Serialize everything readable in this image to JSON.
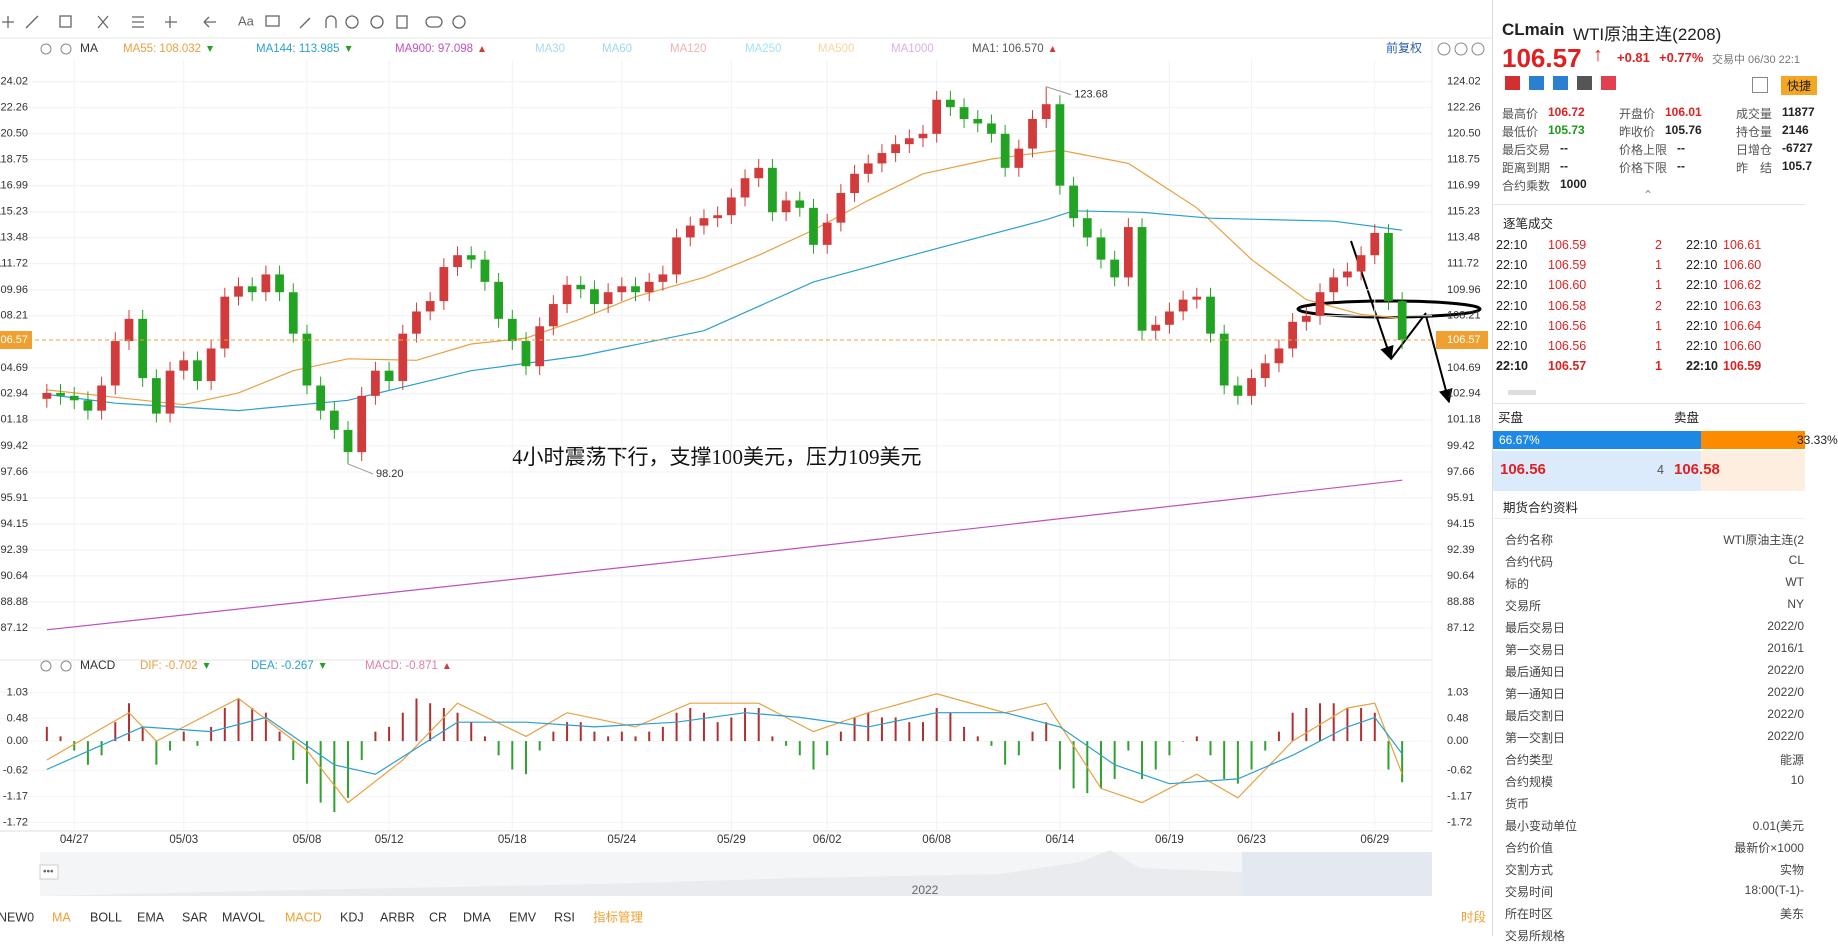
{
  "toolbar": {
    "text_tool": "Aa"
  },
  "chart_data": [
    {
      "type": "candlestick",
      "indicator": "MA",
      "adjust": "前复权",
      "legend": [
        {
          "label": "MA55: 108.032",
          "color": "#e8a040",
          "trend": "down"
        },
        {
          "label": "MA144: 113.985",
          "color": "#2aa0d0",
          "trend": "down"
        },
        {
          "label": "MA900: 97.098",
          "color": "#c050c0",
          "trend": "up"
        },
        {
          "label": "MA30",
          "color": "#a8d8ee"
        },
        {
          "label": "MA60",
          "color": "#9fd8e8"
        },
        {
          "label": "MA120",
          "color": "#f4b0b0"
        },
        {
          "label": "MA250",
          "color": "#9fe4ee"
        },
        {
          "label": "MA500",
          "color": "#f5d7a0"
        },
        {
          "label": "MA1000",
          "color": "#d9b0e6"
        },
        {
          "label": "MA1: 106.570",
          "color": "#555555",
          "trend": "up"
        }
      ],
      "open": [
        102.6,
        103.0,
        102.8,
        102.5,
        101.8,
        103.5,
        106.5,
        108.0,
        104.0,
        101.6,
        104.5,
        105.2,
        103.8,
        106.0,
        109.5,
        110.2,
        109.8,
        111.0,
        109.8,
        107.0,
        103.5,
        101.8,
        100.5,
        99.0,
        102.8,
        104.5,
        103.8,
        107.0,
        108.5,
        109.2,
        111.5,
        112.3,
        112.0,
        110.5,
        108.0,
        106.5,
        104.8,
        107.5,
        109.0,
        110.3,
        110.0,
        109.0,
        109.8,
        110.2,
        109.8,
        110.5,
        111.0,
        113.5,
        114.3,
        114.8,
        115.0,
        116.2,
        117.5,
        118.2,
        115.2,
        116.0,
        115.5,
        113.0,
        114.5,
        116.5,
        117.8,
        118.5,
        119.2,
        119.8,
        120.2,
        120.5,
        122.8,
        122.3,
        121.5,
        121.2,
        120.5,
        118.2,
        119.5,
        121.5,
        122.5,
        117.0,
        114.8,
        113.5,
        112.0,
        110.8,
        114.2,
        107.2,
        107.6,
        108.5,
        109.3,
        109.5,
        107.0,
        103.5,
        102.8,
        104.0,
        105.0,
        106.0,
        107.8,
        108.2,
        109.8,
        110.8,
        111.2,
        112.3,
        113.8,
        109.2
      ],
      "high": [
        103.6,
        103.6,
        103.4,
        103.1,
        104.1,
        107.1,
        108.6,
        108.6,
        104.6,
        105.1,
        105.8,
        105.8,
        106.6,
        110.1,
        110.8,
        110.8,
        111.6,
        111.6,
        110.4,
        107.6,
        104.1,
        102.4,
        101.1,
        103.4,
        105.1,
        105.1,
        107.6,
        109.1,
        109.8,
        112.1,
        112.9,
        112.9,
        112.6,
        111.1,
        108.6,
        107.1,
        108.1,
        109.6,
        110.9,
        110.9,
        110.6,
        110.4,
        110.8,
        110.8,
        111.1,
        111.6,
        114.1,
        114.9,
        115.4,
        115.6,
        116.8,
        118.1,
        118.8,
        118.8,
        116.6,
        116.6,
        116.1,
        115.1,
        117.1,
        118.4,
        119.1,
        119.8,
        120.4,
        120.8,
        121.1,
        123.4,
        123.4,
        122.9,
        122.1,
        121.8,
        121.1,
        120.1,
        122.1,
        123.68,
        123.1,
        117.6,
        115.4,
        114.1,
        112.6,
        114.8,
        114.8,
        108.2,
        109.1,
        109.9,
        110.1,
        110.1,
        107.6,
        104.1,
        104.6,
        105.6,
        106.6,
        108.4,
        108.8,
        110.4,
        111.4,
        111.8,
        112.9,
        114.4,
        114.4,
        109.8
      ],
      "low": [
        102.0,
        102.2,
        101.9,
        101.2,
        101.2,
        102.9,
        105.9,
        103.4,
        101.0,
        101.0,
        103.9,
        103.2,
        103.2,
        105.4,
        108.9,
        109.2,
        109.2,
        109.2,
        106.4,
        102.9,
        101.2,
        99.9,
        98.2,
        98.4,
        102.2,
        103.2,
        103.2,
        106.4,
        107.9,
        108.6,
        110.9,
        111.4,
        109.9,
        107.4,
        105.9,
        104.2,
        104.2,
        106.9,
        108.4,
        109.4,
        108.4,
        108.4,
        109.2,
        109.2,
        109.2,
        109.9,
        110.4,
        112.9,
        113.7,
        114.2,
        114.4,
        115.6,
        116.9,
        114.6,
        114.6,
        114.9,
        112.4,
        112.4,
        113.9,
        115.9,
        117.2,
        117.9,
        118.6,
        119.2,
        119.6,
        119.9,
        121.7,
        120.9,
        120.6,
        119.9,
        117.6,
        117.6,
        118.9,
        120.9,
        116.4,
        114.2,
        112.9,
        111.4,
        110.2,
        110.2,
        106.6,
        106.6,
        107.0,
        107.9,
        108.7,
        106.4,
        102.9,
        102.2,
        102.2,
        103.4,
        104.4,
        105.4,
        107.2,
        107.6,
        109.2,
        110.2,
        110.6,
        111.7,
        108.6,
        105.97
      ],
      "close": [
        103.0,
        102.8,
        102.5,
        101.8,
        103.5,
        106.5,
        108.0,
        104.0,
        101.6,
        104.5,
        105.2,
        103.8,
        106.0,
        109.5,
        110.2,
        109.8,
        111.0,
        109.8,
        107.0,
        103.5,
        101.8,
        100.5,
        99.0,
        102.8,
        104.5,
        103.8,
        107.0,
        108.5,
        109.2,
        111.5,
        112.3,
        112.0,
        110.5,
        108.0,
        106.5,
        104.8,
        107.5,
        109.0,
        110.3,
        110.0,
        109.0,
        109.8,
        110.2,
        109.8,
        110.5,
        111.0,
        113.5,
        114.3,
        114.8,
        115.0,
        116.2,
        117.5,
        118.2,
        115.2,
        116.0,
        115.5,
        113.0,
        114.5,
        116.5,
        117.8,
        118.5,
        119.2,
        119.8,
        120.2,
        120.5,
        122.8,
        122.3,
        121.5,
        121.2,
        120.5,
        118.2,
        119.5,
        121.5,
        122.5,
        117.0,
        114.8,
        113.5,
        112.0,
        110.8,
        114.2,
        107.2,
        107.6,
        108.5,
        109.3,
        109.5,
        107.0,
        103.5,
        102.8,
        104.0,
        105.0,
        106.0,
        107.8,
        108.2,
        109.8,
        110.8,
        111.2,
        112.3,
        113.8,
        109.2,
        106.57
      ],
      "up_color": "#d23b3b",
      "down_color": "#23a323",
      "ylim": [
        85.43,
        125.08
      ],
      "yticks": [
        124.02,
        122.26,
        {
          "value": 120.5,
          "label": "120.50"
        },
        118.75,
        116.99,
        115.23,
        113.48,
        111.72,
        109.96,
        108.21,
        104.69,
        102.94,
        101.18,
        99.42,
        97.66,
        95.91,
        94.15,
        92.39,
        90.64,
        88.88,
        87.12
      ],
      "last_price": 106.57,
      "last_color": "#f0a030",
      "high_label": {
        "value": 123.68,
        "label": "123.68"
      },
      "low_label": {
        "value": 98.2,
        "label": "98.20"
      },
      "lines": [
        {
          "color": "#e8a040",
          "x": [
            0,
            5,
            10,
            14,
            18,
            22,
            27,
            31,
            35,
            39,
            43,
            48,
            52,
            56,
            60,
            64,
            69,
            74,
            79,
            84,
            88,
            92,
            96,
            99
          ],
          "values": [
            103.2,
            102.7,
            102.2,
            103.0,
            104.5,
            105.3,
            105.2,
            106.3,
            106.7,
            108.0,
            109.5,
            110.8,
            112.3,
            114.0,
            116.0,
            117.8,
            118.8,
            119.4,
            118.5,
            115.5,
            112.0,
            109.3,
            108.3,
            108.03
          ]
        },
        {
          "color": "#2aa0d0",
          "x": [
            0,
            5,
            14,
            22,
            31,
            39,
            48,
            56,
            64,
            73,
            75,
            80,
            85,
            94,
            99
          ],
          "values": [
            102.9,
            102.3,
            101.8,
            102.5,
            104.5,
            105.5,
            107.2,
            110.5,
            112.5,
            114.7,
            115.3,
            115.2,
            114.8,
            114.6,
            113.99
          ]
        },
        {
          "color": "#c050c0",
          "x": [
            0,
            50,
            99
          ],
          "values": [
            87.0,
            92.0,
            97.1
          ]
        }
      ]
    },
    {
      "type": "macd",
      "title": "MACD",
      "legend": [
        {
          "label": "DIF: -0.702",
          "color": "#e8a040",
          "trend": "down"
        },
        {
          "label": "DEA: -0.267",
          "color": "#2aa0d0",
          "trend": "down"
        },
        {
          "label": "MACD: -0.871",
          "color": "#e080a0",
          "trend": "up"
        }
      ],
      "categories": [
        null,
        null,
        "04/27",
        null,
        null,
        null,
        null,
        null,
        null,
        null,
        "05/03",
        null,
        null,
        null,
        null,
        null,
        null,
        null,
        null,
        "05/08",
        null,
        null,
        null,
        null,
        null,
        "05/12",
        null,
        null,
        null,
        null,
        null,
        null,
        null,
        null,
        "05/18",
        null,
        null,
        null,
        null,
        null,
        null,
        null,
        "05/24",
        null,
        null,
        null,
        null,
        null,
        null,
        null,
        "05/29",
        null,
        null,
        null,
        null,
        null,
        null,
        "06/02",
        null,
        null,
        null,
        null,
        null,
        null,
        null,
        "06/08",
        null,
        null,
        null,
        null,
        null,
        null,
        null,
        null,
        "06/14",
        null,
        null,
        null,
        null,
        null,
        null,
        null,
        "06/19",
        null,
        null,
        null,
        null,
        null,
        "06/23",
        null,
        null,
        null,
        null,
        null,
        null,
        null,
        null,
        "06/29",
        null,
        null
      ],
      "values": [
        0.3,
        0.1,
        -0.2,
        -0.5,
        -0.3,
        0.4,
        0.8,
        0.3,
        -0.5,
        -0.2,
        0.2,
        -0.1,
        0.3,
        0.7,
        0.9,
        0.7,
        0.6,
        0.2,
        -0.4,
        -0.9,
        -1.3,
        -1.5,
        -1.2,
        -0.4,
        0.2,
        0.3,
        0.6,
        0.9,
        0.8,
        0.7,
        0.6,
        0.4,
        0.1,
        -0.3,
        -0.6,
        -0.7,
        -0.2,
        0.2,
        0.4,
        0.4,
        0.2,
        0.1,
        0.2,
        0.1,
        0.2,
        0.3,
        0.6,
        0.7,
        0.6,
        0.4,
        0.5,
        0.7,
        0.7,
        0.1,
        -0.1,
        -0.3,
        -0.6,
        -0.3,
        0.2,
        0.5,
        0.6,
        0.5,
        0.5,
        0.4,
        0.4,
        0.7,
        0.6,
        0.3,
        0.1,
        -0.1,
        -0.5,
        -0.3,
        0.2,
        0.4,
        -0.6,
        -1.0,
        -1.1,
        -1.0,
        -0.8,
        -0.2,
        -0.8,
        -0.6,
        -0.3,
        0.0,
        0.1,
        -0.3,
        -0.8,
        -0.9,
        -0.6,
        -0.2,
        0.2,
        0.6,
        0.7,
        0.8,
        0.8,
        0.7,
        0.7,
        0.6,
        -0.6,
        -0.87
      ],
      "up_color": "#b03030",
      "down_color": "#30a030",
      "ylim": [
        -1.9,
        1.27
      ],
      "yticks": [
        1.03,
        0.48,
        {
          "value": 0,
          "label": "0.00"
        },
        -0.62,
        -1.17,
        -1.72
      ],
      "lines": [
        {
          "color": "#e8a040",
          "x": [
            0,
            6,
            8,
            14,
            19,
            22,
            26,
            30,
            35,
            38,
            43,
            47,
            52,
            56,
            60,
            65,
            70,
            73,
            77,
            80,
            84,
            87,
            91,
            95,
            97,
            99
          ],
          "values": [
            -0.4,
            0.6,
            0.0,
            0.9,
            -0.2,
            -1.3,
            -0.4,
            0.8,
            0.1,
            0.6,
            0.3,
            0.8,
            0.8,
            0.2,
            0.6,
            1.0,
            0.6,
            0.8,
            -1.0,
            -1.3,
            -0.7,
            -1.2,
            0.0,
            0.7,
            0.8,
            -0.7
          ]
        },
        {
          "color": "#2aa0d0",
          "x": [
            0,
            7,
            12,
            16,
            21,
            24,
            30,
            35,
            40,
            46,
            51,
            55,
            60,
            65,
            70,
            74,
            78,
            82,
            87,
            91,
            95,
            97,
            99
          ],
          "values": [
            -0.6,
            0.3,
            0.2,
            0.5,
            -0.5,
            -0.7,
            0.4,
            0.4,
            0.3,
            0.4,
            0.6,
            0.5,
            0.3,
            0.6,
            0.6,
            0.3,
            -0.5,
            -0.9,
            -0.8,
            -0.3,
            0.3,
            0.5,
            -0.27
          ]
        }
      ]
    }
  ],
  "annotation": "4小时震荡下行，支撑100美元，压力109美元",
  "navigator": {
    "year": "2022"
  },
  "indicator_tabs": [
    {
      "label": "NEW0"
    },
    {
      "label": "MA",
      "color": "#f0a030"
    },
    {
      "label": "BOLL"
    },
    {
      "label": "EMA"
    },
    {
      "label": "SAR"
    },
    {
      "label": "MAVOL"
    },
    {
      "label": "MACD",
      "color": "#f0a030"
    },
    {
      "label": "KDJ"
    },
    {
      "label": "ARBR"
    },
    {
      "label": "CR"
    },
    {
      "label": "DMA"
    },
    {
      "label": "EMV"
    },
    {
      "label": "RSI"
    },
    {
      "label": "指标管理",
      "color": "#f0a030"
    }
  ],
  "time_range": "时段",
  "quote": {
    "symbol": "CLmain",
    "name": "WTI原油主连(2208)",
    "price": "106.57",
    "change": "+0.81",
    "change_pct": "+0.77%",
    "status": "交易中 06/30 22:1",
    "quick": "快捷",
    "stats": [
      {
        "label": "最高价",
        "value": "106.72",
        "color": "#e02020"
      },
      {
        "label": "开盘价",
        "value": "106.01",
        "color": "#e02020"
      },
      {
        "label": "成交量",
        "value": "11877",
        "color": "#222222"
      },
      {
        "label": "最低价",
        "value": "105.73",
        "color": "#1a9a1a"
      },
      {
        "label": "昨收价",
        "value": "105.76",
        "color": "#222222"
      },
      {
        "label": "持仓量",
        "value": "2146",
        "color": "#222222"
      },
      {
        "label": "最后交易",
        "value": "--",
        "color": "#222222"
      },
      {
        "label": "价格上限",
        "value": "--",
        "color": "#222222"
      },
      {
        "label": "日增仓",
        "value": "-6727",
        "color": "#222222"
      },
      {
        "label": "距离到期",
        "value": "--",
        "color": "#222222"
      },
      {
        "label": "价格下限",
        "value": "--",
        "color": "#222222"
      },
      {
        "label": "昨　结",
        "value": "105.7",
        "color": "#222222"
      },
      {
        "label": "合约乘数",
        "value": "1000",
        "color": "#222222"
      }
    ]
  },
  "trades": {
    "title": "逐笔成交",
    "rows": [
      [
        "22:10",
        "106.59",
        "2",
        "22:10",
        "106.61"
      ],
      [
        "22:10",
        "106.59",
        "1",
        "22:10",
        "106.60"
      ],
      [
        "22:10",
        "106.60",
        "1",
        "22:10",
        "106.62"
      ],
      [
        "22:10",
        "106.58",
        "2",
        "22:10",
        "106.63"
      ],
      [
        "22:10",
        "106.56",
        "1",
        "22:10",
        "106.64"
      ],
      [
        "22:10",
        "106.56",
        "1",
        "22:10",
        "106.60"
      ],
      [
        "22:10",
        "106.57",
        "1",
        "22:10",
        "106.59"
      ]
    ]
  },
  "order_book": {
    "buy_label": "买盘",
    "sell_label": "卖盘",
    "buy_pct": {
      "value": 66.67,
      "label": "66.67%"
    },
    "sell_pct": {
      "value": 33.33,
      "label": "33.33%"
    },
    "bid": "106.56",
    "bid_qty": "4",
    "ask": "106.58"
  },
  "contract_info": {
    "title": "期货合约资料",
    "rows": [
      [
        "合约名称",
        "WTI原油主连(2"
      ],
      [
        "合约代码",
        "CL"
      ],
      [
        "标的",
        "WT"
      ],
      [
        "交易所",
        "NY"
      ],
      [
        "最后交易日",
        "2022/0"
      ],
      [
        "第一交易日",
        "2016/1"
      ],
      [
        "最后通知日",
        "2022/0"
      ],
      [
        "第一通知日",
        "2022/0"
      ],
      [
        "最后交割日",
        "2022/0"
      ],
      [
        "第一交割日",
        "2022/0"
      ],
      [
        "合约类型",
        "能源"
      ],
      [
        "合约规模",
        "10"
      ],
      [
        "货币"
      ],
      [
        "最小变动单位",
        "0.01(美元"
      ],
      [
        "合约价值",
        "最新价×1000"
      ],
      [
        "交割方式",
        "实物"
      ],
      [
        "交易时间",
        "18:00(T-1)-"
      ],
      [
        "所在时区",
        "美东"
      ],
      [
        "交易所规格"
      ]
    ]
  }
}
